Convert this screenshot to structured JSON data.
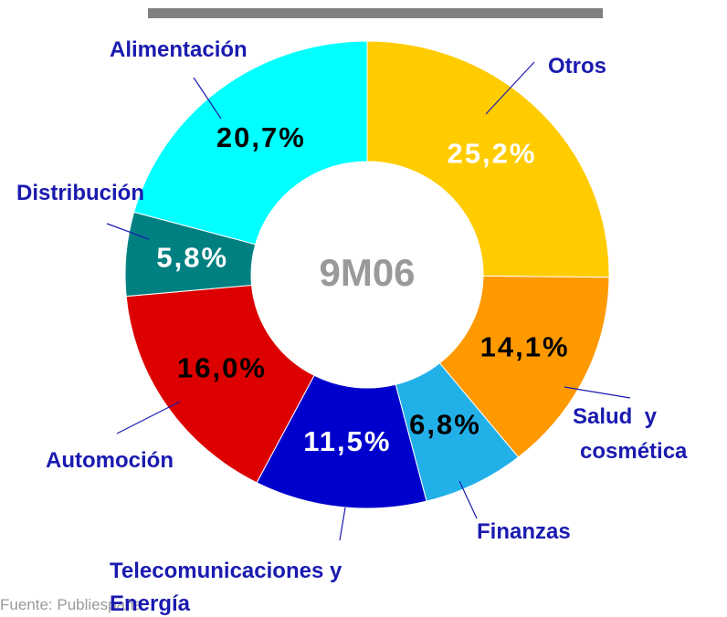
{
  "chart_data": {
    "type": "donut",
    "center_label": "9M06",
    "categories": [
      "Otros",
      "Salud  y cosmética",
      "Finanzas",
      "Telecomunicaciones y Energía",
      "Automoción",
      "Distribución",
      "Alimentación"
    ],
    "values": [
      25.2,
      14.1,
      6.8,
      11.5,
      16.0,
      5.8,
      20.7
    ],
    "value_labels": [
      "25,2%",
      "14,1%",
      "6,8%",
      "11,5%",
      "16,0%",
      "5,8%",
      "20,7%"
    ],
    "colors": [
      "#ffcc00",
      "#ff9900",
      "#22b0e8",
      "#0000cc",
      "#dd0000",
      "#008080",
      "#00ffff"
    ],
    "source": "Fuente: Publiespaña"
  }
}
